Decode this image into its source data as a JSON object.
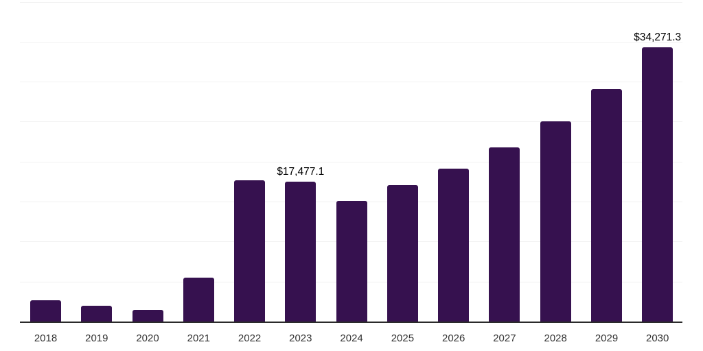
{
  "chart_data": {
    "type": "bar",
    "title": "",
    "xlabel": "",
    "ylabel": "",
    "categories": [
      "2018",
      "2019",
      "2020",
      "2021",
      "2022",
      "2023",
      "2024",
      "2025",
      "2026",
      "2027",
      "2028",
      "2029",
      "2030"
    ],
    "values": [
      2700,
      1970,
      1430,
      5530,
      17670,
      17477.1,
      15100,
      17050,
      19100,
      21800,
      25000,
      29100,
      34271.3
    ],
    "annotations": [
      {
        "category": "2023",
        "text": "$17,477.1"
      },
      {
        "category": "2030",
        "text": "$34,271.3"
      }
    ],
    "ylim": [
      0,
      40000
    ],
    "gridline_step": 5000,
    "grid": "horizontal-only",
    "legend_position": "none",
    "y_tick_labels_visible": false,
    "colors": {
      "bar": "#36114F",
      "axis": "#2b2b2b",
      "gridline": "#f1f1f1",
      "value_label": "#000000",
      "tick_label": "#333333",
      "background": "#ffffff"
    }
  }
}
